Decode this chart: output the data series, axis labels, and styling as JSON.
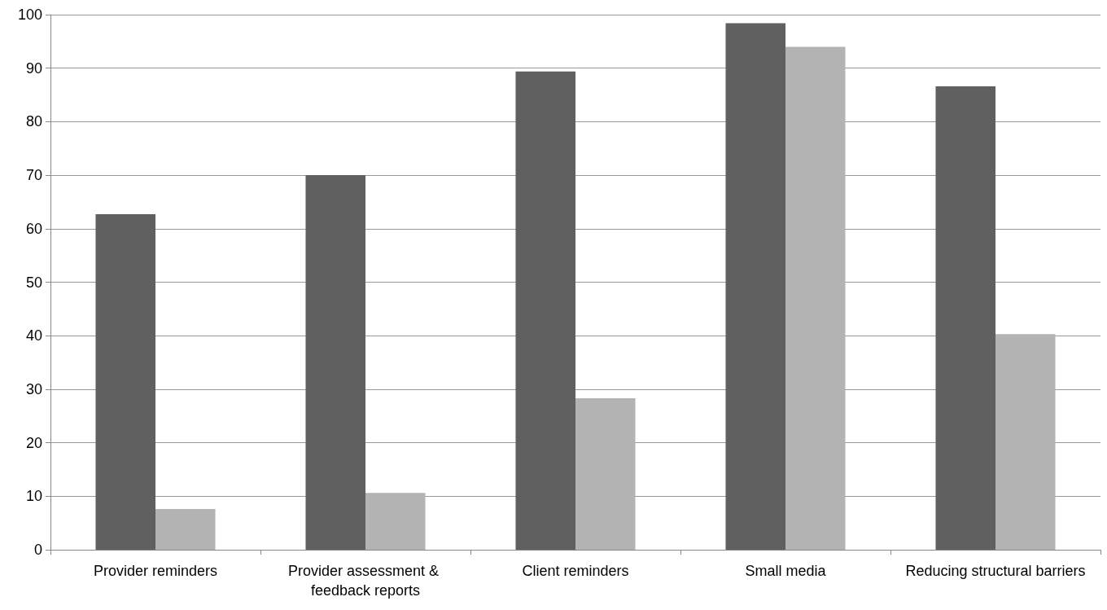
{
  "chart_data": {
    "type": "bar",
    "categories": [
      "Provider reminders",
      "Provider assessment & feedback reports",
      "Client reminders",
      "Small media",
      "Reducing structural barriers"
    ],
    "series": [
      {
        "color": "#606060",
        "values": [
          62.7,
          70,
          89.4,
          98.4,
          86.6
        ]
      },
      {
        "color": "#b3b3b3",
        "values": [
          7.6,
          10.6,
          28.3,
          94,
          40.3
        ]
      }
    ],
    "ylim": [
      0,
      100
    ],
    "yticks": [
      0,
      10,
      20,
      30,
      40,
      50,
      60,
      70,
      80,
      90,
      100
    ],
    "grid": "y"
  }
}
